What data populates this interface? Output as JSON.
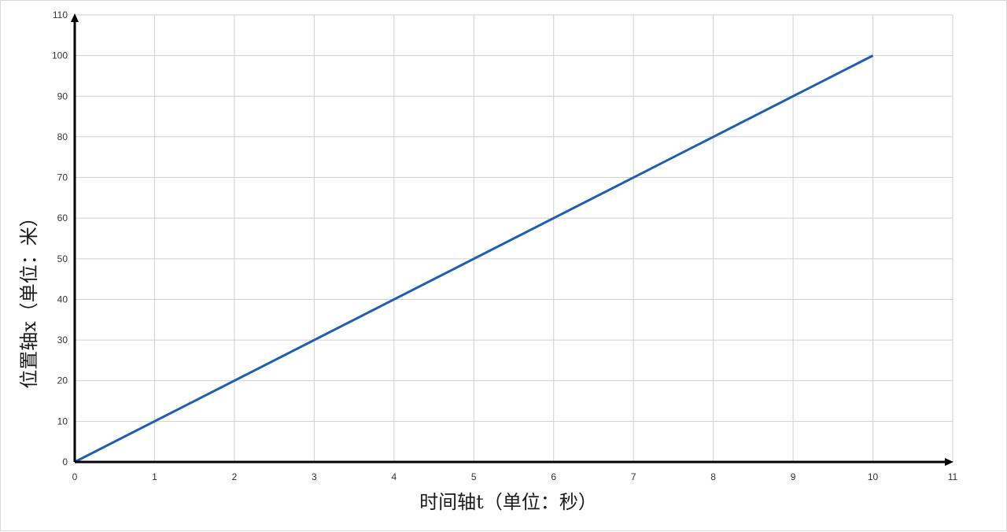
{
  "chart_data": {
    "type": "line",
    "title": "",
    "xlabel": "时间轴t（单位：秒）",
    "ylabel": "位置轴x（单位：米）",
    "xlim": [
      0,
      11
    ],
    "ylim": [
      0,
      110
    ],
    "xticks": [
      0,
      1,
      2,
      3,
      4,
      5,
      6,
      7,
      8,
      9,
      10,
      11
    ],
    "yticks": [
      0,
      10,
      20,
      30,
      40,
      50,
      60,
      70,
      80,
      90,
      100,
      110
    ],
    "grid": true,
    "legend": "none",
    "series": [
      {
        "x": [
          0,
          10
        ],
        "y": [
          0,
          100
        ],
        "color": "#1f5fae"
      }
    ],
    "colors": {
      "grid": "#d0d0d0",
      "axis": "#000000",
      "line": "#1f5fae"
    }
  }
}
